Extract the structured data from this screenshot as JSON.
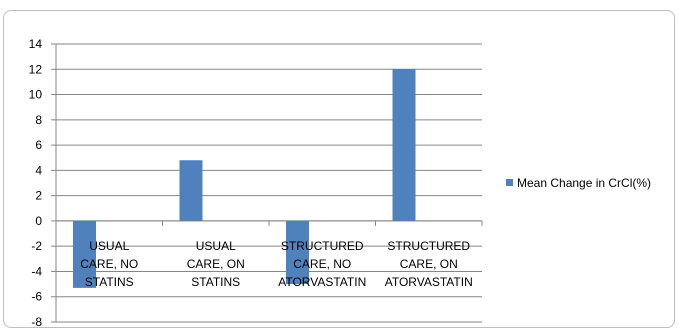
{
  "chart_data": {
    "type": "bar",
    "title": "",
    "xlabel": "",
    "ylabel": "",
    "categories": [
      [
        "USUAL",
        "CARE, NO",
        "STATINS"
      ],
      [
        "USUAL",
        "CARE, ON",
        "STATINS"
      ],
      [
        "STRUCTURED",
        "CARE, NO",
        "ATORVASTATIN"
      ],
      [
        "STRUCTURED",
        "CARE, ON",
        "ATORVASTATIN"
      ]
    ],
    "series": [
      {
        "name": "Mean Change in CrCl(%)",
        "values": [
          -5.3,
          4.8,
          -5.0,
          12.0
        ],
        "color": "#4f81bd"
      }
    ],
    "ylim": [
      -8,
      14
    ],
    "yticks": [
      -8,
      -6,
      -4,
      -2,
      0,
      2,
      4,
      6,
      8,
      10,
      12,
      14
    ],
    "grid": true,
    "legend": "right"
  }
}
